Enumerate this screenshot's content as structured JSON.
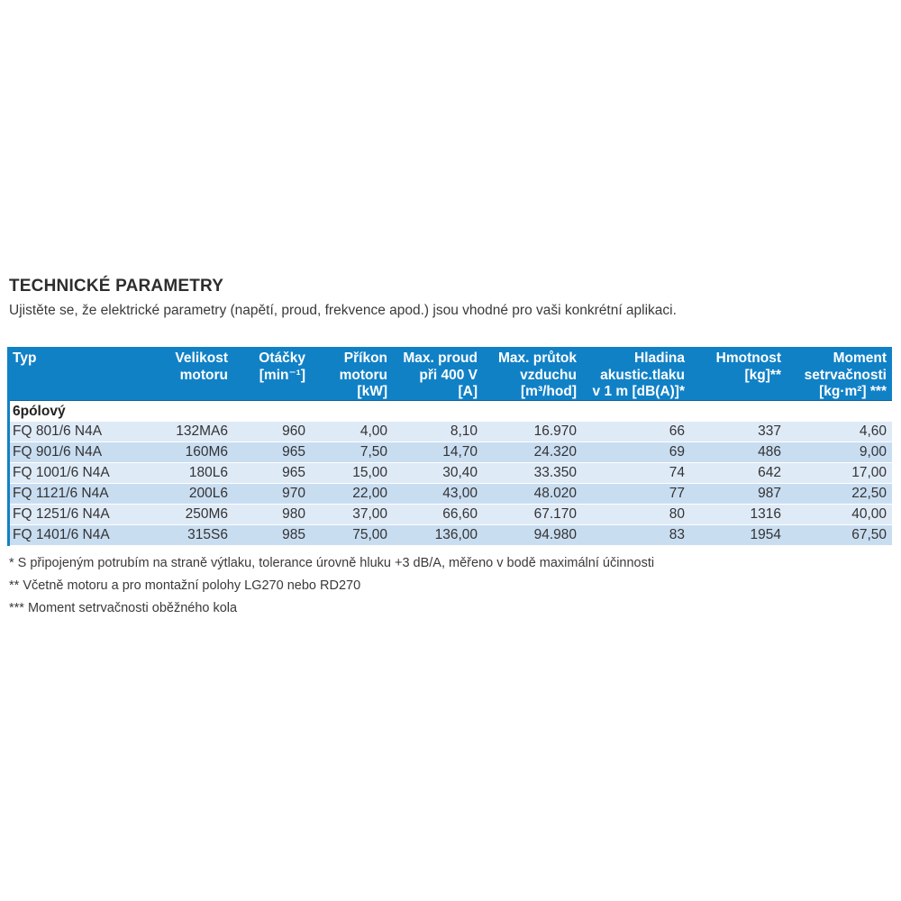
{
  "header": {
    "title": "TECHNICKÉ PARAMETRY",
    "subtitle": "Ujistěte se, že elektrické parametry (napětí, proud, frekvence apod.) jsou vhodné pro vaši konkrétní aplikaci."
  },
  "table": {
    "accent_color": "#1181c6",
    "stripe_light": "#dfeaf7",
    "stripe_dark": "#c9ddf1",
    "columns": [
      {
        "label": "Typ"
      },
      {
        "label": "Velikost\nmotoru"
      },
      {
        "label": "Otáčky\n[min⁻¹]"
      },
      {
        "label": "Příkon\nmotoru\n[kW]"
      },
      {
        "label": "Max. proud\npři 400 V\n[A]"
      },
      {
        "label": "Max. průtok\nvzduchu\n[m³/hod]"
      },
      {
        "label": "Hladina\nakustic.tlaku\nv 1 m [dB(A)]*"
      },
      {
        "label": "Hmotnost\n[kg]**"
      },
      {
        "label": "Moment\nsetrvačnosti\n[kg·m²] ***"
      }
    ],
    "section_label": "6pólový",
    "rows": [
      {
        "cells": [
          "FQ 801/6 N4A",
          "132MA6",
          "960",
          "4,00",
          "8,10",
          "16.970",
          "66",
          "337",
          "4,60"
        ]
      },
      {
        "cells": [
          "FQ 901/6 N4A",
          "160M6",
          "965",
          "7,50",
          "14,70",
          "24.320",
          "69",
          "486",
          "9,00"
        ]
      },
      {
        "cells": [
          "FQ 1001/6 N4A",
          "180L6",
          "965",
          "15,00",
          "30,40",
          "33.350",
          "74",
          "642",
          "17,00"
        ]
      },
      {
        "cells": [
          "FQ 1121/6 N4A",
          "200L6",
          "970",
          "22,00",
          "43,00",
          "48.020",
          "77",
          "987",
          "22,50"
        ]
      },
      {
        "cells": [
          "FQ 1251/6 N4A",
          "250M6",
          "980",
          "37,00",
          "66,60",
          "67.170",
          "80",
          "1316",
          "40,00"
        ]
      },
      {
        "cells": [
          "FQ 1401/6 N4A",
          "315S6",
          "985",
          "75,00",
          "136,00",
          "94.980",
          "83",
          "1954",
          "67,50"
        ]
      }
    ]
  },
  "footnotes": [
    "* S připojeným potrubím na straně výtlaku, tolerance úrovně hluku +3 dB/A, měřeno v bodě maximální účinnosti",
    "** Včetně motoru a pro montažní polohy LG270 nebo RD270",
    "*** Moment setrvačnosti oběžného kola"
  ]
}
